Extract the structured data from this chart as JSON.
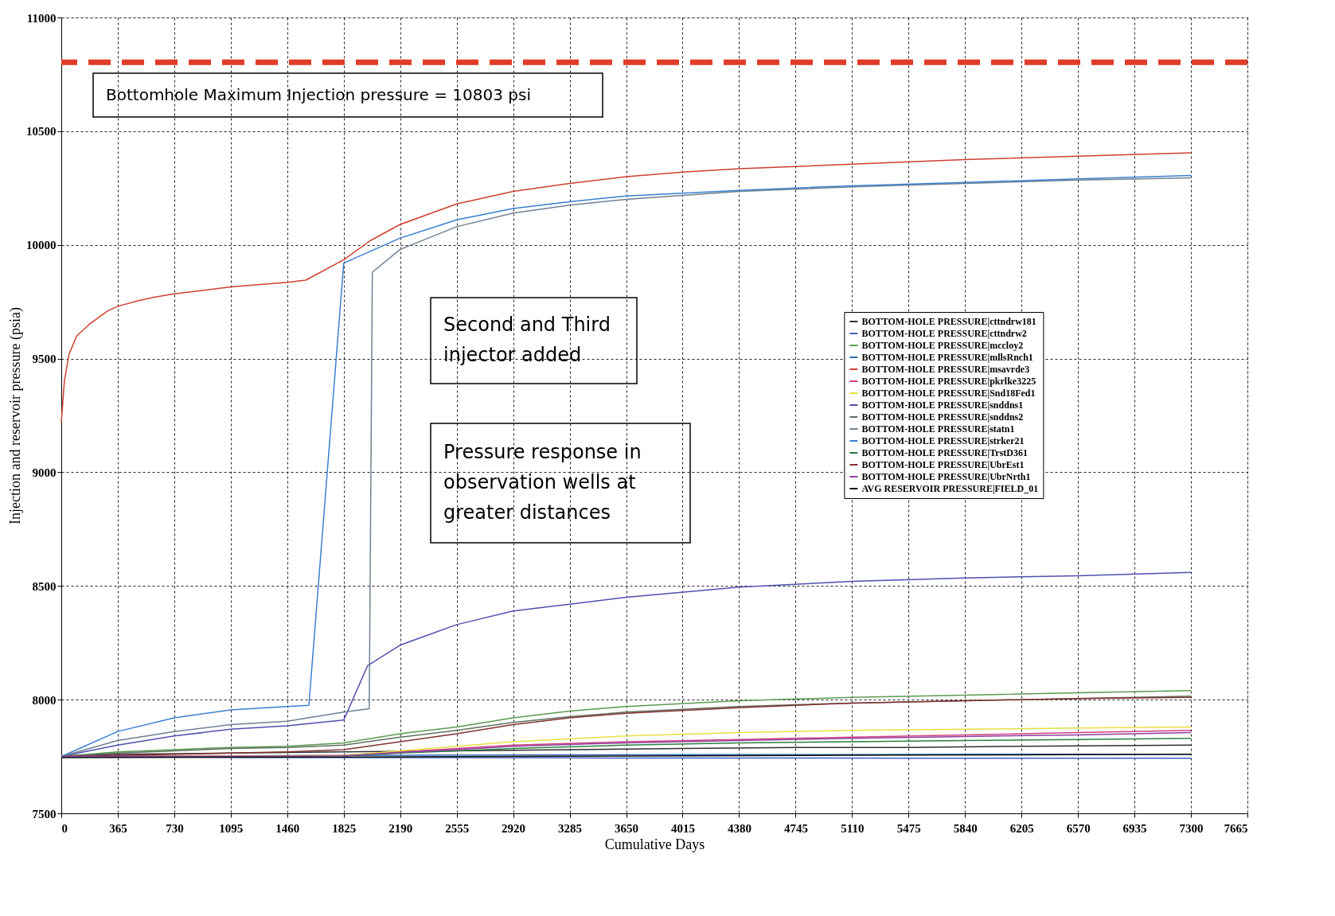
{
  "chart_data": {
    "type": "line",
    "xlabel": "Cumulative Days",
    "ylabel": "Injection and reservoir pressure (psia)",
    "xlim": [
      0,
      7665
    ],
    "xticks": [
      0,
      365,
      730,
      1095,
      1460,
      1825,
      2190,
      2555,
      2920,
      3285,
      3650,
      4015,
      4380,
      4745,
      5110,
      5475,
      5840,
      6205,
      6570,
      6935,
      7300,
      7665
    ],
    "ylim": [
      7500,
      11000
    ],
    "yticks": [
      7500,
      8000,
      8500,
      9000,
      9500,
      10000,
      10500,
      11000
    ],
    "grid": true,
    "legend": "right",
    "ref_lines": [
      {
        "axis": "y",
        "value": 10803,
        "color": "#e03c28",
        "line_style": "dashed"
      }
    ],
    "annotations": [
      "Bottomhole Maximum Injection pressure = 10803 psi",
      "Second and Third\ninjector added",
      "Pressure response in\nobservation wells at\ngreater distances"
    ],
    "series": [
      {
        "name": "BOTTOM-HOLE PRESSURE|cttndrw181",
        "color": "#303030",
        "x": [
          0,
          365,
          1095,
          1825,
          2555,
          3285,
          4015,
          4745,
          5475,
          6205,
          7300
        ],
        "values": [
          7750,
          7760,
          7765,
          7770,
          7775,
          7780,
          7785,
          7790,
          7790,
          7795,
          7800
        ]
      },
      {
        "name": "BOTTOM-HOLE PRESSURE|cttndrw2",
        "color": "#4060c0",
        "x": [
          0,
          365,
          1095,
          1825,
          2555,
          3285,
          4015,
          4745,
          5475,
          6205,
          7300
        ],
        "values": [
          7750,
          7748,
          7746,
          7745,
          7745,
          7744,
          7743,
          7743,
          7742,
          7742,
          7742
        ]
      },
      {
        "name": "BOTTOM-HOLE PRESSURE|mccloy2",
        "color": "#5a9a50",
        "x": [
          0,
          365,
          730,
          1095,
          1460,
          1825,
          2190,
          2555,
          2920,
          3285,
          3650,
          4380,
          5110,
          5840,
          6570,
          7300
        ],
        "values": [
          7750,
          7770,
          7780,
          7790,
          7795,
          7810,
          7850,
          7880,
          7920,
          7950,
          7970,
          7995,
          8010,
          8020,
          8030,
          8040
        ]
      },
      {
        "name": "BOTTOM-HOLE PRESSURE|mllsRnch1",
        "color": "#2f6fb8",
        "x": [
          0,
          365,
          1095,
          1825,
          2555,
          3285,
          4015,
          4745,
          5475,
          6205,
          7300
        ],
        "values": [
          7750,
          7752,
          7753,
          7755,
          7756,
          7757,
          7758,
          7758,
          7759,
          7760,
          7760
        ]
      },
      {
        "name": "BOTTOM-HOLE PRESSURE|msavrde3",
        "color": "#d04030",
        "x": [
          0,
          20,
          50,
          100,
          180,
          300,
          365,
          500,
          600,
          730,
          1095,
          1460,
          1580,
          1825,
          2000,
          2190,
          2555,
          2920,
          3285,
          3650,
          4015,
          4380,
          5110,
          5840,
          6570,
          7300
        ],
        "values": [
          9220,
          9400,
          9520,
          9600,
          9650,
          9710,
          9730,
          9755,
          9770,
          9785,
          9815,
          9835,
          9845,
          9935,
          10020,
          10090,
          10180,
          10235,
          10270,
          10300,
          10320,
          10335,
          10355,
          10375,
          10390,
          10405
        ]
      },
      {
        "name": "BOTTOM-HOLE PRESSURE|pkrlke3225",
        "color": "#d04080",
        "x": [
          0,
          1095,
          1825,
          2190,
          2555,
          2920,
          3650,
          4380,
          5110,
          5840,
          6570,
          7300
        ],
        "values": [
          7750,
          7752,
          7755,
          7770,
          7785,
          7800,
          7815,
          7825,
          7835,
          7845,
          7855,
          7865
        ]
      },
      {
        "name": "BOTTOM-HOLE PRESSURE|Snd18Fed1",
        "color": "#e8e040",
        "x": [
          0,
          1095,
          1825,
          2190,
          2555,
          2920,
          3650,
          4380,
          5110,
          5840,
          6570,
          7300
        ],
        "values": [
          7750,
          7752,
          7755,
          7775,
          7795,
          7815,
          7840,
          7855,
          7865,
          7870,
          7875,
          7880
        ]
      },
      {
        "name": "BOTTOM-HOLE PRESSURE|snddns1",
        "color": "#5050b0",
        "x": [
          0,
          365,
          730,
          1095,
          1460,
          1825,
          1980,
          2190,
          2555,
          2920,
          3285,
          3650,
          4380,
          5110,
          5840,
          6570,
          7300
        ],
        "values": [
          7750,
          7800,
          7840,
          7870,
          7885,
          7910,
          8150,
          8240,
          8330,
          8390,
          8420,
          8450,
          8495,
          8520,
          8535,
          8545,
          8560
        ]
      },
      {
        "name": "BOTTOM-HOLE PRESSURE|snddns2",
        "color": "#607060",
        "x": [
          0,
          365,
          730,
          1095,
          1460,
          1825,
          2190,
          2555,
          2920,
          3285,
          3650,
          4380,
          5110,
          5840,
          6570,
          7300
        ],
        "values": [
          7750,
          7765,
          7775,
          7785,
          7790,
          7800,
          7835,
          7865,
          7900,
          7925,
          7945,
          7970,
          7985,
          7995,
          8005,
          8015
        ]
      },
      {
        "name": "BOTTOM-HOLE PRESSURE|statn1",
        "color": "#708090",
        "x": [
          0,
          365,
          730,
          1095,
          1460,
          1825,
          1990,
          2010,
          2190,
          2555,
          2920,
          3285,
          3650,
          4380,
          5110,
          5840,
          6570,
          7300
        ],
        "values": [
          7750,
          7820,
          7860,
          7890,
          7905,
          7945,
          7960,
          9880,
          9980,
          10080,
          10140,
          10175,
          10200,
          10235,
          10255,
          10270,
          10285,
          10295
        ]
      },
      {
        "name": "BOTTOM-HOLE PRESSURE|strker21",
        "color": "#3a7fd0",
        "x": [
          0,
          100,
          365,
          730,
          1095,
          1460,
          1600,
          1825,
          2190,
          2555,
          2920,
          3285,
          3650,
          4380,
          5110,
          5840,
          6570,
          7300
        ],
        "values": [
          7750,
          7780,
          7860,
          7920,
          7955,
          7970,
          7975,
          9920,
          10030,
          10110,
          10160,
          10190,
          10215,
          10240,
          10260,
          10275,
          10290,
          10305
        ]
      },
      {
        "name": "BOTTOM-HOLE PRESSURE|TrstD361",
        "color": "#2a8040",
        "x": [
          1825,
          2190,
          2555,
          2920,
          3650,
          4380,
          5110,
          5840,
          6570,
          7300
        ],
        "values": [
          7753,
          7765,
          7775,
          7785,
          7800,
          7810,
          7815,
          7820,
          7825,
          7830
        ]
      },
      {
        "name": "BOTTOM-HOLE PRESSURE|UbrEst1",
        "color": "#803030",
        "x": [
          0,
          365,
          730,
          1095,
          1460,
          1825,
          2190,
          2555,
          2920,
          3285,
          3650,
          4380,
          5110,
          5840,
          6570,
          7300
        ],
        "values": [
          7750,
          7755,
          7760,
          7765,
          7770,
          7780,
          7815,
          7850,
          7890,
          7920,
          7940,
          7965,
          7985,
          7995,
          8005,
          8010
        ]
      },
      {
        "name": "BOTTOM-HOLE PRESSURE|UbrNrth1",
        "color": "#9040a0",
        "x": [
          0,
          1095,
          1825,
          2190,
          2555,
          2920,
          3650,
          4380,
          5110,
          5840,
          6570,
          7300
        ],
        "values": [
          7750,
          7751,
          7753,
          7768,
          7780,
          7795,
          7810,
          7820,
          7830,
          7838,
          7845,
          7855
        ]
      },
      {
        "name": "AVG RESERVOIR PRESSURE|FIELD_01",
        "color": "#101010",
        "x": [
          0,
          1825,
          3650,
          5475,
          7300
        ],
        "values": [
          7745,
          7748,
          7752,
          7756,
          7760
        ]
      }
    ]
  }
}
